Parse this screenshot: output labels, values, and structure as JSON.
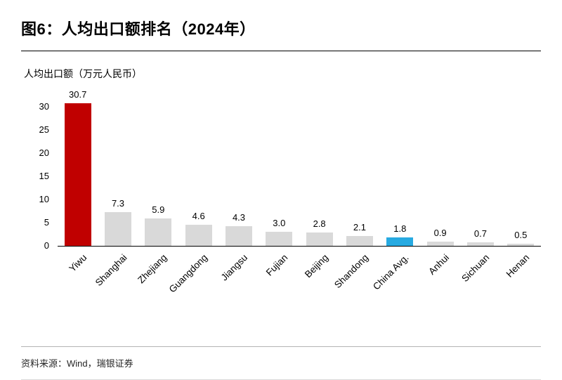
{
  "page": {
    "title": "图6：人均出口额排名（2024年）",
    "source": "资料来源：Wind，瑞银证券"
  },
  "chart_data": {
    "type": "bar",
    "title": "图6：人均出口额排名（2024年）",
    "ylabel": "人均出口额（万元人民币）",
    "xlabel": "",
    "categories": [
      "Yiwu",
      "Shanghai",
      "Zhejiang",
      "Guangdong",
      "Jiangsu",
      "Fujian",
      "Beijing",
      "Shandong",
      "China Avg.",
      "Anhui",
      "Sichuan",
      "Henan"
    ],
    "values": [
      30.7,
      7.3,
      5.9,
      4.6,
      4.3,
      3.0,
      2.8,
      2.1,
      1.8,
      0.9,
      0.7,
      0.5
    ],
    "colors": [
      "#C00000",
      "#D9D9D9",
      "#D9D9D9",
      "#D9D9D9",
      "#D9D9D9",
      "#D9D9D9",
      "#D9D9D9",
      "#D9D9D9",
      "#27AAE1",
      "#D9D9D9",
      "#D9D9D9",
      "#D9D9D9"
    ],
    "color_legend": {
      "highlight": "#C00000",
      "default": "#D9D9D9",
      "china_avg": "#27AAE1"
    },
    "yticks": [
      0,
      5,
      10,
      15,
      20,
      25,
      30
    ],
    "ylim": [
      0,
      31
    ],
    "grid": false,
    "legend": "none",
    "value_labels_decimals": 1
  }
}
